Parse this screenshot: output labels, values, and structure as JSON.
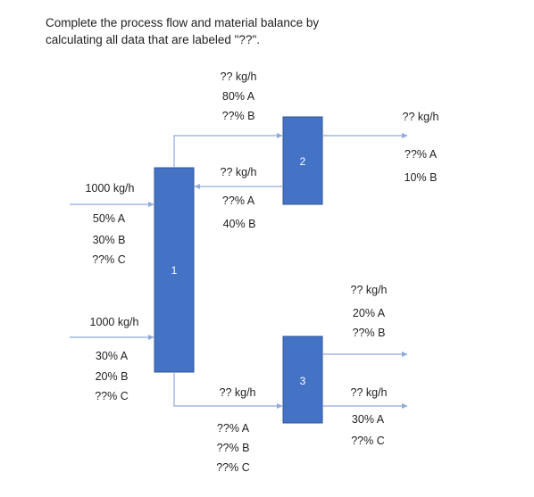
{
  "problem_statement": "Complete the process flow and material balance by calculating all data that are labeled \"??\".",
  "units": [
    {
      "id": "unit-1",
      "label": "1"
    },
    {
      "id": "unit-2",
      "label": "2"
    },
    {
      "id": "unit-3",
      "label": "3"
    }
  ],
  "streams": {
    "feed_a": {
      "flow": "1000 kg/h",
      "comp": [
        "50% A",
        "30% B",
        "??% C"
      ]
    },
    "feed_b": {
      "flow": "1000 kg/h",
      "comp": [
        "30% A",
        "20% B",
        "??% C"
      ]
    },
    "to_unit2": {
      "flow": "?? kg/h",
      "comp": [
        "80% A",
        "??% B"
      ]
    },
    "recycle": {
      "flow": "?? kg/h",
      "comp": [
        "??% A",
        "40% B"
      ]
    },
    "product_2": {
      "flow": "?? kg/h",
      "comp": [
        "??% A",
        "10% B"
      ]
    },
    "to_unit3": {
      "flow": "?? kg/h",
      "comp": [
        "??% A",
        "??% B",
        "??% C"
      ]
    },
    "product_3_top": {
      "flow": "?? kg/h",
      "comp": [
        "20% A",
        "??% B"
      ]
    },
    "product_3_bottom": {
      "flow": "?? kg/h",
      "comp": [
        "30% A",
        "??% C"
      ]
    }
  }
}
